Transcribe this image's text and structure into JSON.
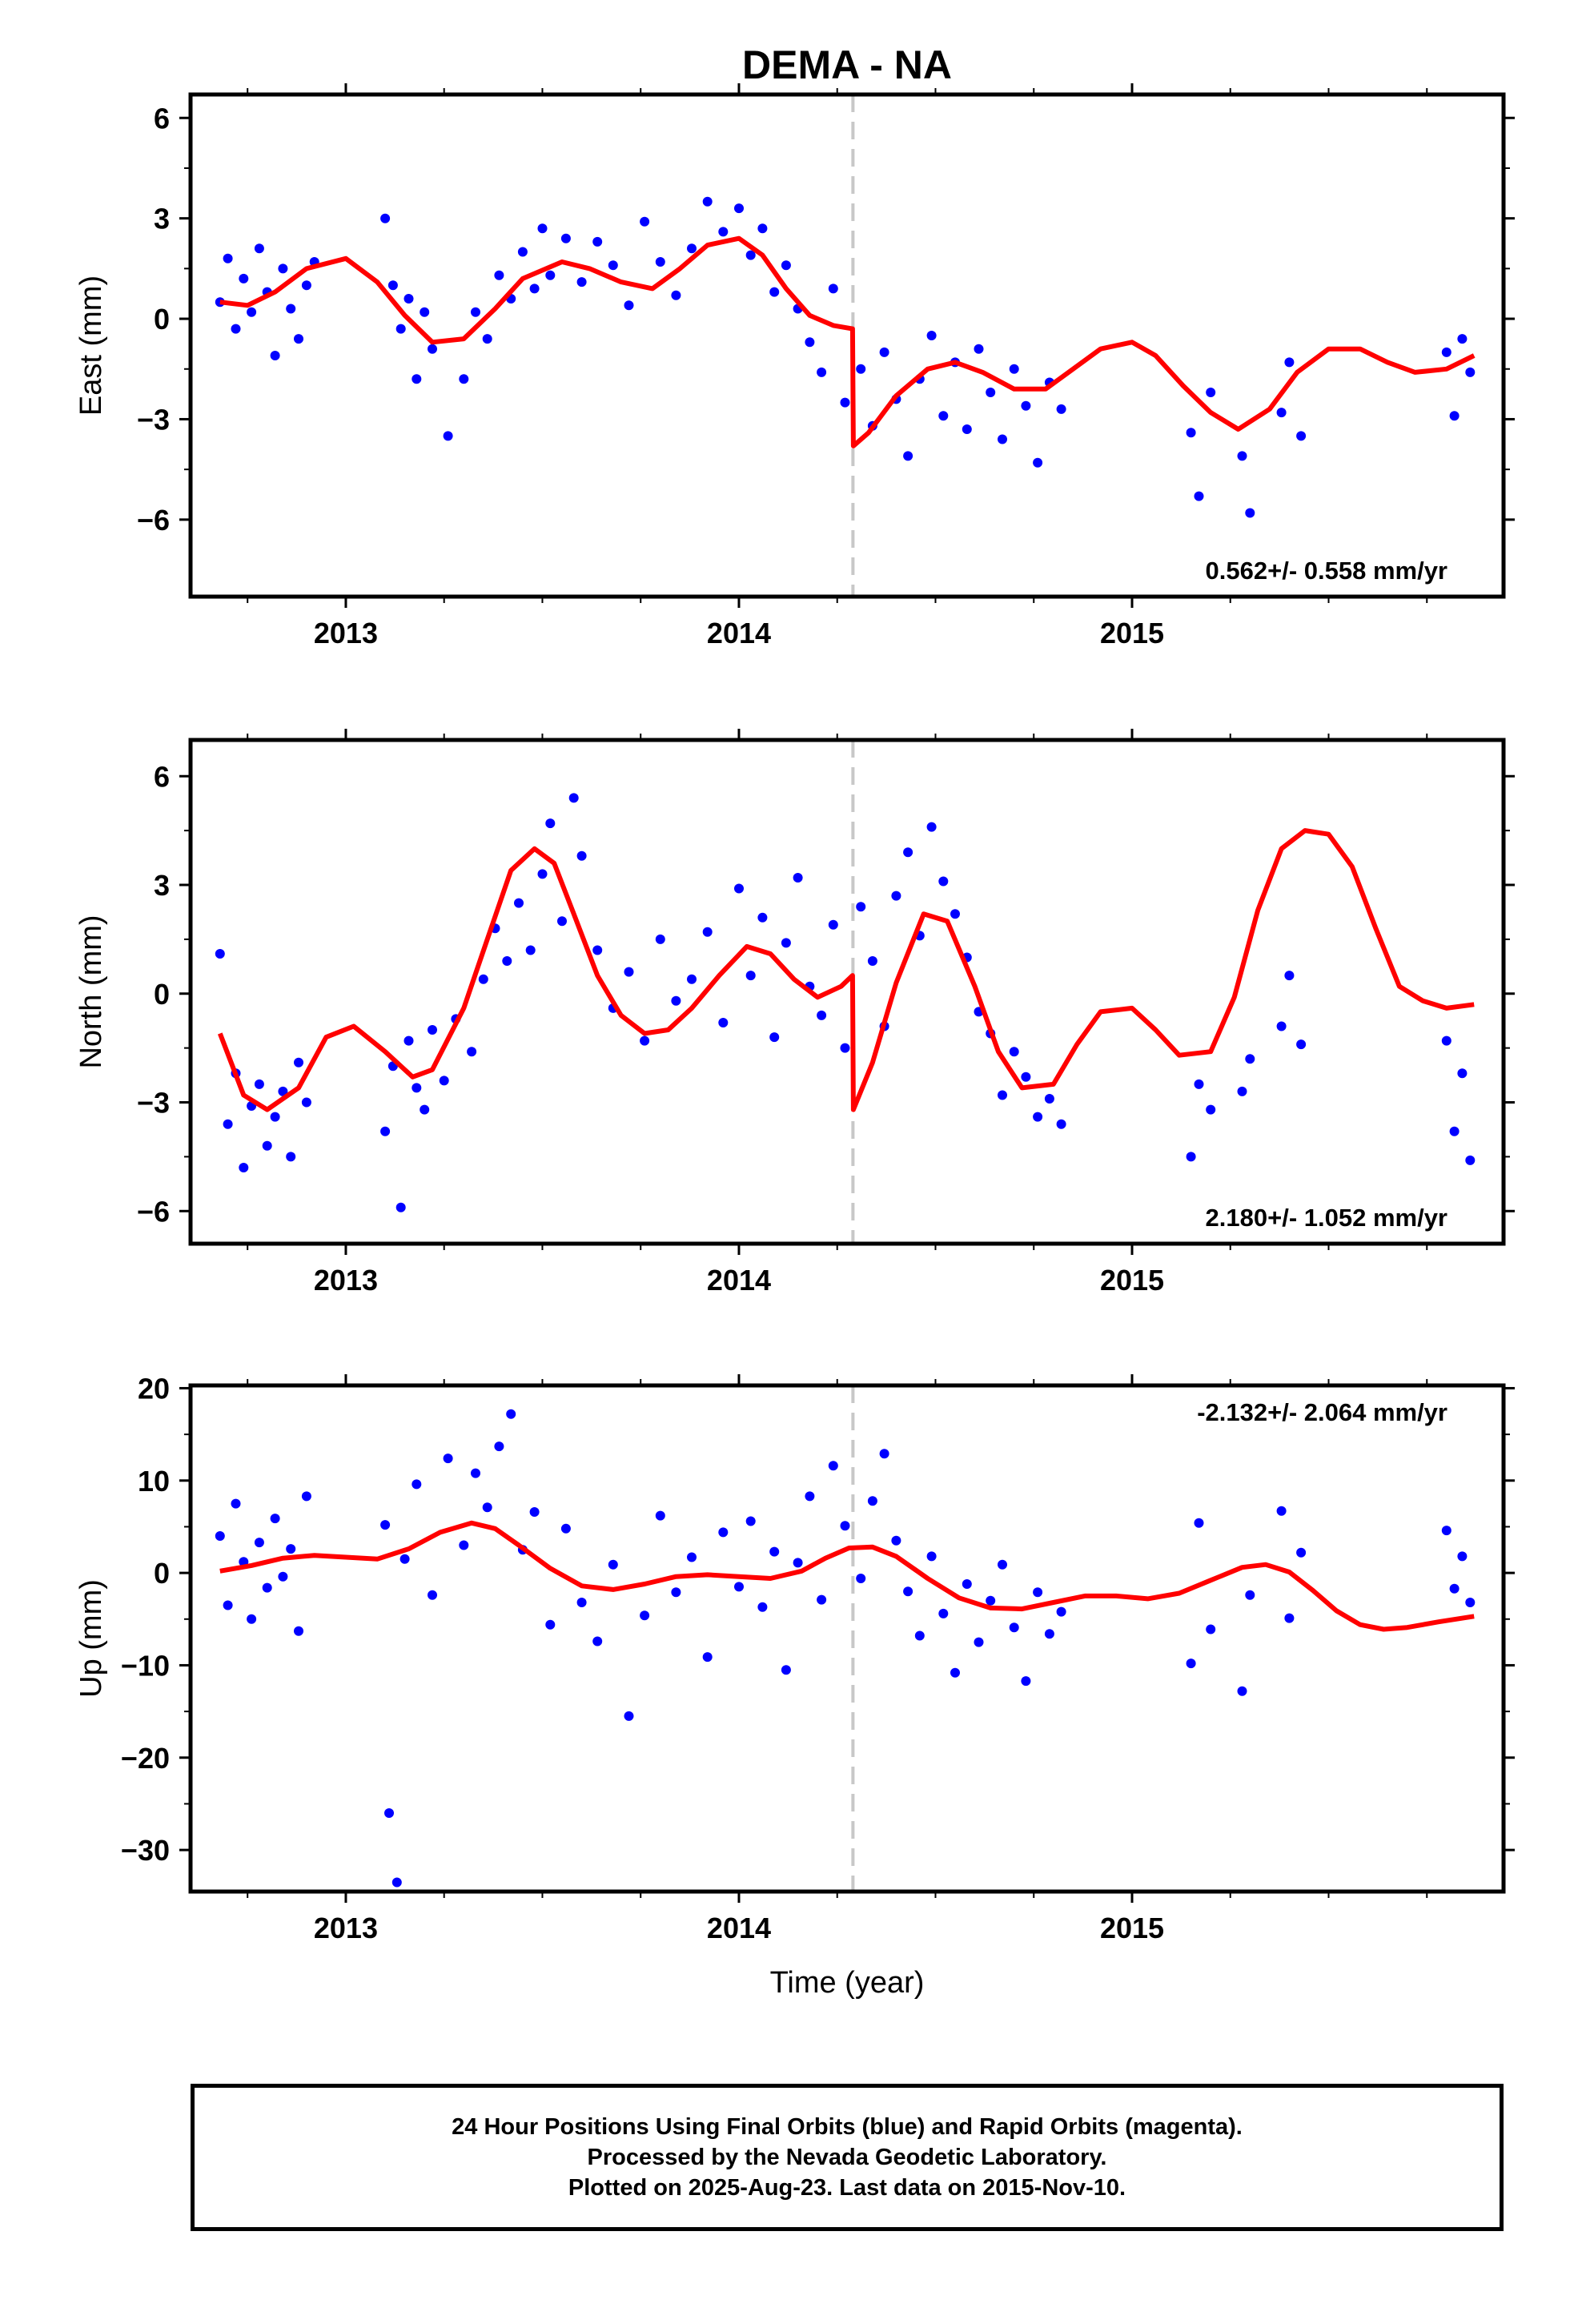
{
  "title": "DEMA - NA",
  "xlabel": "Time (year)",
  "footer": {
    "line1": "24 Hour Positions Using Final Orbits (blue) and Rapid Orbits (magenta).",
    "line2": "Processed by the Nevada Geodetic Laboratory.",
    "line3": "Plotted on 2025-Aug-23. Last data on 2015-Nov-10."
  },
  "colors": {
    "points": "#0000ff",
    "model": "#ff0000",
    "offset_line": "#c8c8c8",
    "axis": "#000000"
  },
  "chart_data": [
    {
      "type": "scatter",
      "ylabel": "East (mm)",
      "annotation": "0.562+/- 0.558 mm/yr",
      "annotation_position": "bottom-right",
      "xlim": [
        2012.605,
        2015.945
      ],
      "ylim": [
        -8.3,
        6.7
      ],
      "yticks": [
        -6,
        -3,
        0,
        3,
        6
      ],
      "ytick_labels": [
        "−6",
        "−3",
        "0",
        "3",
        "6"
      ],
      "xticks": [
        2013,
        2014,
        2015
      ],
      "xtick_labels": [
        "2013",
        "2014",
        "2015"
      ],
      "offset_epoch": 2014.29,
      "model": {
        "x": [
          2012.68,
          2012.75,
          2012.82,
          2012.9,
          2013.0,
          2013.08,
          2013.15,
          2013.22,
          2013.3,
          2013.38,
          2013.45,
          2013.55,
          2013.62,
          2013.7,
          2013.78,
          2013.85,
          2013.92,
          2014.0,
          2014.06,
          2014.12,
          2014.18,
          2014.24,
          2014.289,
          2014.291,
          2014.33,
          2014.4,
          2014.48,
          2014.55,
          2014.62,
          2014.7,
          2014.78,
          2014.85,
          2014.92,
          2015.0,
          2015.06,
          2015.13,
          2015.2,
          2015.27,
          2015.35,
          2015.42,
          2015.5,
          2015.58,
          2015.65,
          2015.72,
          2015.8,
          2015.87
        ],
        "y": [
          0.5,
          0.4,
          0.8,
          1.5,
          1.8,
          1.1,
          0.1,
          -0.7,
          -0.6,
          0.3,
          1.2,
          1.7,
          1.5,
          1.1,
          0.9,
          1.5,
          2.2,
          2.4,
          1.9,
          0.9,
          0.1,
          -0.2,
          -0.3,
          -3.8,
          -3.4,
          -2.3,
          -1.5,
          -1.3,
          -1.6,
          -2.1,
          -2.1,
          -1.5,
          -0.9,
          -0.7,
          -1.1,
          -2.0,
          -2.8,
          -3.3,
          -2.7,
          -1.6,
          -0.9,
          -0.9,
          -1.3,
          -1.6,
          -1.5,
          -1.1
        ]
      },
      "points": {
        "x": [
          2012.68,
          2012.7,
          2012.72,
          2012.74,
          2012.76,
          2012.78,
          2012.8,
          2012.82,
          2012.84,
          2012.86,
          2012.88,
          2012.9,
          2012.92,
          2013.1,
          2013.12,
          2013.14,
          2013.16,
          2013.18,
          2013.2,
          2013.22,
          2013.26,
          2013.3,
          2013.33,
          2013.36,
          2013.39,
          2013.42,
          2013.45,
          2013.48,
          2013.5,
          2013.52,
          2013.56,
          2013.6,
          2013.64,
          2013.68,
          2013.72,
          2013.76,
          2013.8,
          2013.84,
          2013.88,
          2013.92,
          2013.96,
          2014.0,
          2014.03,
          2014.06,
          2014.09,
          2014.12,
          2014.15,
          2014.18,
          2014.21,
          2014.24,
          2014.27,
          2014.31,
          2014.34,
          2014.37,
          2014.4,
          2014.43,
          2014.46,
          2014.49,
          2014.52,
          2014.55,
          2014.58,
          2014.61,
          2014.64,
          2014.67,
          2014.7,
          2014.73,
          2014.76,
          2014.79,
          2014.82,
          2015.15,
          2015.17,
          2015.2,
          2015.28,
          2015.3,
          2015.38,
          2015.4,
          2015.43,
          2015.8,
          2015.82,
          2015.84,
          2015.86
        ],
        "y": [
          0.5,
          1.8,
          -0.3,
          1.2,
          0.2,
          2.1,
          0.8,
          -1.1,
          1.5,
          0.3,
          -0.6,
          1.0,
          1.7,
          3.0,
          1.0,
          -0.3,
          0.6,
          -1.8,
          0.2,
          -0.9,
          -3.5,
          -1.8,
          0.2,
          -0.6,
          1.3,
          0.6,
          2.0,
          0.9,
          2.7,
          1.3,
          2.4,
          1.1,
          2.3,
          1.6,
          0.4,
          2.9,
          1.7,
          0.7,
          2.1,
          3.5,
          2.6,
          3.3,
          1.9,
          2.7,
          0.8,
          1.6,
          0.3,
          -0.7,
          -1.6,
          0.9,
          -2.5,
          -1.5,
          -3.2,
          -1.0,
          -2.4,
          -4.1,
          -1.8,
          -0.5,
          -2.9,
          -1.3,
          -3.3,
          -0.9,
          -2.2,
          -3.6,
          -1.5,
          -2.6,
          -4.3,
          -1.9,
          -2.7,
          -3.4,
          -5.3,
          -2.2,
          -4.1,
          -5.8,
          -2.8,
          -1.3,
          -3.5,
          -1.0,
          -2.9,
          -0.6,
          -1.6
        ]
      }
    },
    {
      "type": "scatter",
      "ylabel": "North (mm)",
      "annotation": "2.180+/- 1.052 mm/yr",
      "annotation_position": "bottom-right",
      "xlim": [
        2012.605,
        2015.945
      ],
      "ylim": [
        -6.9,
        7.0
      ],
      "yticks": [
        -6,
        -3,
        0,
        3,
        6
      ],
      "ytick_labels": [
        "−6",
        "−3",
        "0",
        "3",
        "6"
      ],
      "xticks": [
        2013,
        2014,
        2015
      ],
      "xtick_labels": [
        "2013",
        "2014",
        "2015"
      ],
      "offset_epoch": 2014.29,
      "model": {
        "x": [
          2012.68,
          2012.74,
          2012.8,
          2012.88,
          2012.95,
          2013.02,
          2013.1,
          2013.17,
          2013.22,
          2013.3,
          2013.36,
          2013.42,
          2013.48,
          2013.53,
          2013.58,
          2013.64,
          2013.7,
          2013.76,
          2013.82,
          2013.88,
          2013.95,
          2014.02,
          2014.08,
          2014.14,
          2014.2,
          2014.26,
          2014.289,
          2014.291,
          2014.34,
          2014.4,
          2014.47,
          2014.53,
          2014.6,
          2014.66,
          2014.72,
          2014.8,
          2014.86,
          2014.92,
          2015.0,
          2015.06,
          2015.12,
          2015.2,
          2015.26,
          2015.32,
          2015.38,
          2015.44,
          2015.5,
          2015.56,
          2015.62,
          2015.68,
          2015.74,
          2015.8,
          2015.87
        ],
        "y": [
          -1.1,
          -2.8,
          -3.2,
          -2.6,
          -1.2,
          -0.9,
          -1.6,
          -2.3,
          -2.1,
          -0.4,
          1.5,
          3.4,
          4.0,
          3.6,
          2.2,
          0.5,
          -0.6,
          -1.1,
          -1.0,
          -0.4,
          0.5,
          1.3,
          1.1,
          0.4,
          -0.1,
          0.2,
          0.5,
          -3.2,
          -1.9,
          0.3,
          2.2,
          2.0,
          0.2,
          -1.6,
          -2.6,
          -2.5,
          -1.4,
          -0.5,
          -0.4,
          -1.0,
          -1.7,
          -1.6,
          -0.1,
          2.3,
          4.0,
          4.5,
          4.4,
          3.5,
          1.8,
          0.2,
          -0.2,
          -0.4,
          -0.3
        ]
      },
      "points": {
        "x": [
          2012.68,
          2012.7,
          2012.72,
          2012.74,
          2012.76,
          2012.78,
          2012.8,
          2012.82,
          2012.84,
          2012.86,
          2012.88,
          2012.9,
          2013.1,
          2013.12,
          2013.14,
          2013.16,
          2013.18,
          2013.2,
          2013.22,
          2013.25,
          2013.28,
          2013.32,
          2013.35,
          2013.38,
          2013.41,
          2013.44,
          2013.47,
          2013.5,
          2013.52,
          2013.55,
          2013.58,
          2013.6,
          2013.64,
          2013.68,
          2013.72,
          2013.76,
          2013.8,
          2013.84,
          2013.88,
          2013.92,
          2013.96,
          2014.0,
          2014.03,
          2014.06,
          2014.09,
          2014.12,
          2014.15,
          2014.18,
          2014.21,
          2014.24,
          2014.27,
          2014.31,
          2014.34,
          2014.37,
          2014.4,
          2014.43,
          2014.46,
          2014.49,
          2014.52,
          2014.55,
          2014.58,
          2014.61,
          2014.64,
          2014.67,
          2014.7,
          2014.73,
          2014.76,
          2014.79,
          2014.82,
          2015.15,
          2015.17,
          2015.2,
          2015.28,
          2015.3,
          2015.38,
          2015.4,
          2015.43,
          2015.8,
          2015.82,
          2015.84,
          2015.86
        ],
        "y": [
          1.1,
          -3.6,
          -2.2,
          -4.8,
          -3.1,
          -2.5,
          -4.2,
          -3.4,
          -2.7,
          -4.5,
          -1.9,
          -3.0,
          -3.8,
          -2.0,
          -5.9,
          -1.3,
          -2.6,
          -3.2,
          -1.0,
          -2.4,
          -0.7,
          -1.6,
          0.4,
          1.8,
          0.9,
          2.5,
          1.2,
          3.3,
          4.7,
          2.0,
          5.4,
          3.8,
          1.2,
          -0.4,
          0.6,
          -1.3,
          1.5,
          -0.2,
          0.4,
          1.7,
          -0.8,
          2.9,
          0.5,
          2.1,
          -1.2,
          1.4,
          3.2,
          0.2,
          -0.6,
          1.9,
          -1.5,
          2.4,
          0.9,
          -0.9,
          2.7,
          3.9,
          1.6,
          4.6,
          3.1,
          2.2,
          1.0,
          -0.5,
          -1.1,
          -2.8,
          -1.6,
          -2.3,
          -3.4,
          -2.9,
          -3.6,
          -4.5,
          -2.5,
          -3.2,
          -2.7,
          -1.8,
          -0.9,
          0.5,
          -1.4,
          -1.3,
          -3.8,
          -2.2,
          -4.6
        ]
      }
    },
    {
      "type": "scatter",
      "ylabel": "Up (mm)",
      "annotation": "-2.132+/- 2.064 mm/yr",
      "annotation_position": "top-right",
      "xlim": [
        2012.605,
        2015.945
      ],
      "ylim": [
        -34.5,
        20.3
      ],
      "yticks": [
        -30,
        -20,
        -10,
        0,
        10,
        20
      ],
      "ytick_labels": [
        "−30",
        "−20",
        "−10",
        "0",
        "10",
        "20"
      ],
      "xticks": [
        2013,
        2014,
        2015
      ],
      "xtick_labels": [
        "2013",
        "2014",
        "2015"
      ],
      "offset_epoch": 2014.29,
      "model": {
        "x": [
          2012.68,
          2012.76,
          2012.84,
          2012.92,
          2013.0,
          2013.08,
          2013.16,
          2013.24,
          2013.32,
          2013.38,
          2013.44,
          2013.52,
          2013.6,
          2013.68,
          2013.76,
          2013.84,
          2013.92,
          2014.0,
          2014.08,
          2014.16,
          2014.22,
          2014.28,
          2014.34,
          2014.4,
          2014.48,
          2014.56,
          2014.64,
          2014.72,
          2014.8,
          2014.88,
          2014.96,
          2015.04,
          2015.12,
          2015.2,
          2015.28,
          2015.34,
          2015.4,
          2015.46,
          2015.52,
          2015.58,
          2015.64,
          2015.7,
          2015.78,
          2015.87
        ],
        "y": [
          0.2,
          0.8,
          1.6,
          1.9,
          1.7,
          1.5,
          2.6,
          4.4,
          5.4,
          4.8,
          3.0,
          0.5,
          -1.4,
          -1.8,
          -1.2,
          -0.4,
          -0.2,
          -0.4,
          -0.6,
          0.2,
          1.6,
          2.7,
          2.8,
          1.8,
          -0.6,
          -2.7,
          -3.8,
          -3.9,
          -3.2,
          -2.5,
          -2.5,
          -2.8,
          -2.2,
          -0.8,
          0.6,
          0.9,
          0.1,
          -1.9,
          -4.1,
          -5.6,
          -6.1,
          -5.9,
          -5.3,
          -4.7
        ]
      },
      "points": {
        "x": [
          2012.68,
          2012.7,
          2012.72,
          2012.74,
          2012.76,
          2012.78,
          2012.8,
          2012.82,
          2012.84,
          2012.86,
          2012.88,
          2012.9,
          2013.1,
          2013.11,
          2013.13,
          2013.15,
          2013.18,
          2013.22,
          2013.26,
          2013.3,
          2013.33,
          2013.36,
          2013.39,
          2013.42,
          2013.45,
          2013.48,
          2013.52,
          2013.56,
          2013.6,
          2013.64,
          2013.68,
          2013.72,
          2013.76,
          2013.8,
          2013.84,
          2013.88,
          2013.92,
          2013.96,
          2014.0,
          2014.03,
          2014.06,
          2014.09,
          2014.12,
          2014.15,
          2014.18,
          2014.21,
          2014.24,
          2014.27,
          2014.31,
          2014.34,
          2014.37,
          2014.4,
          2014.43,
          2014.46,
          2014.49,
          2014.52,
          2014.55,
          2014.58,
          2014.61,
          2014.64,
          2014.67,
          2014.7,
          2014.73,
          2014.76,
          2014.79,
          2014.82,
          2015.15,
          2015.17,
          2015.2,
          2015.28,
          2015.3,
          2015.38,
          2015.4,
          2015.43,
          2015.8,
          2015.82,
          2015.84,
          2015.86
        ],
        "y": [
          4.0,
          -3.5,
          7.5,
          1.2,
          -5.0,
          3.3,
          -1.6,
          5.9,
          -0.4,
          2.6,
          -6.3,
          8.3,
          5.2,
          -26.0,
          -33.5,
          1.5,
          9.6,
          -2.4,
          12.4,
          3.0,
          10.8,
          7.1,
          13.7,
          17.2,
          2.5,
          6.6,
          -5.6,
          4.8,
          -3.2,
          -7.4,
          0.9,
          -15.5,
          -4.6,
          6.2,
          -2.1,
          1.7,
          -9.1,
          4.4,
          -1.5,
          5.6,
          -3.7,
          2.3,
          -10.5,
          1.1,
          8.3,
          -2.9,
          11.6,
          5.1,
          -0.6,
          7.8,
          12.9,
          3.5,
          -2.0,
          -6.8,
          1.8,
          -4.4,
          -10.8,
          -1.2,
          -7.5,
          -3.0,
          0.9,
          -5.9,
          -11.7,
          -2.1,
          -6.6,
          -4.2,
          -9.8,
          5.4,
          -6.1,
          -12.8,
          -2.4,
          6.7,
          -4.9,
          2.2,
          4.6,
          -1.7,
          1.8,
          -3.2
        ]
      }
    }
  ]
}
